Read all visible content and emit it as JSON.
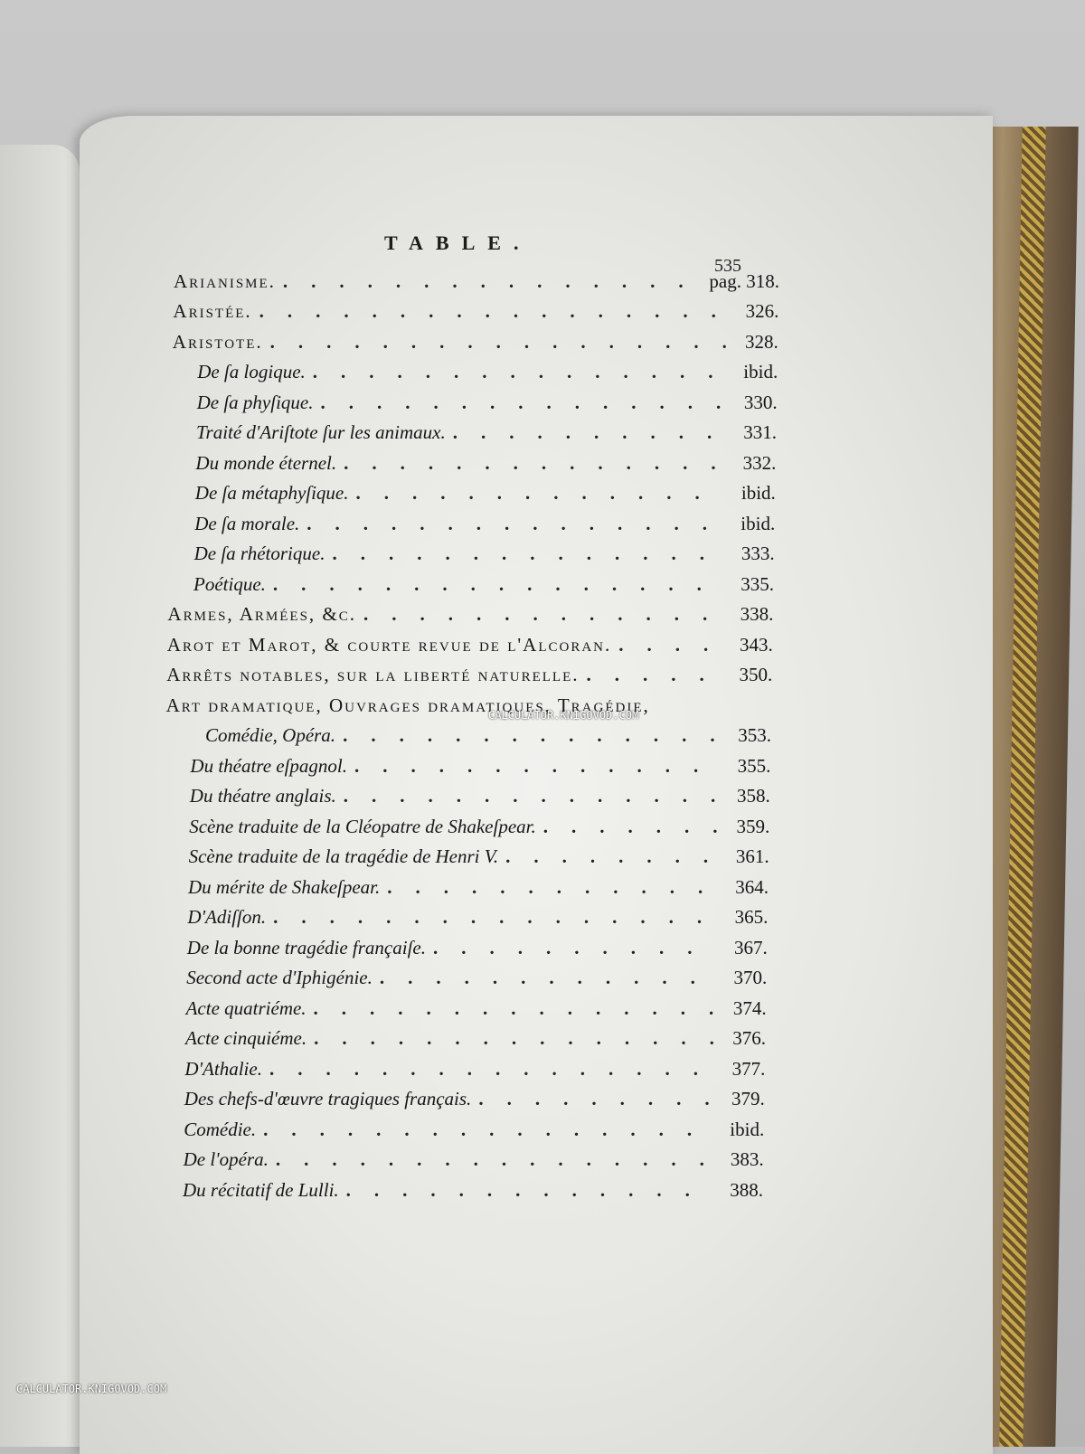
{
  "header": {
    "title": "TABLE.",
    "folio": "535"
  },
  "entries": [
    {
      "text": "Arianisme.",
      "style": "sc",
      "level": 0,
      "prefix": "pag.",
      "page": "318."
    },
    {
      "text": "Aristée.",
      "style": "sc",
      "level": 0,
      "page": "326."
    },
    {
      "text": "Aristote.",
      "style": "sc",
      "level": 0,
      "page": "328."
    },
    {
      "text": "De ſa logique.",
      "style": "it",
      "level": 1,
      "page": "ibid."
    },
    {
      "text": "De ſa phyſique.",
      "style": "it",
      "level": 1,
      "page": "330."
    },
    {
      "text": "Traité d'Ariſtote ſur les animaux.",
      "style": "it",
      "level": 1,
      "page": "331."
    },
    {
      "text": "Du monde éternel.",
      "style": "it",
      "level": 1,
      "page": "332."
    },
    {
      "text": "De ſa métaphyſique.",
      "style": "it",
      "level": 1,
      "page": "ibid."
    },
    {
      "text": "De ſa morale.",
      "style": "it",
      "level": 1,
      "page": "ibid."
    },
    {
      "text": "De ſa rhétorique.",
      "style": "it",
      "level": 1,
      "page": "333."
    },
    {
      "text": "Poétique.",
      "style": "it",
      "level": 1,
      "page": "335."
    },
    {
      "text": "Armes, Armées, &c.",
      "style": "sc",
      "level": 0,
      "page": "338."
    },
    {
      "text": "Arot et Marot, & courte revue de l'Alcoran.",
      "style": "sc",
      "level": 0,
      "page": "343."
    },
    {
      "text": "Arrêts notables, ſur la liberté naturelle.",
      "style": "sc",
      "level": 0,
      "page": "350."
    },
    {
      "text": "Art dramatique, Ouvrages dramatiques, Tragédie,",
      "style": "sc",
      "level": 0,
      "page": ""
    },
    {
      "text": "Comédie, Opéra.",
      "style": "it",
      "level": 2,
      "page": "353."
    },
    {
      "text": "Du théatre eſpagnol.",
      "style": "it",
      "level": 1,
      "page": "355."
    },
    {
      "text": "Du théatre anglais.",
      "style": "it",
      "level": 1,
      "page": "358."
    },
    {
      "text": "Scène traduite de la Cléopatre de Shakeſpear.",
      "style": "it",
      "level": 1,
      "page": "359."
    },
    {
      "text": "Scène traduite de la tragédie de Henri V.",
      "style": "it",
      "level": 1,
      "page": "361."
    },
    {
      "text": "Du mérite de Shakeſpear.",
      "style": "it",
      "level": 1,
      "page": "364."
    },
    {
      "text": "D'Adiſſon.",
      "style": "it",
      "level": 1,
      "page": "365."
    },
    {
      "text": "De la bonne tragédie françaiſe.",
      "style": "it",
      "level": 1,
      "page": "367."
    },
    {
      "text": "Second acte d'Iphigénie.",
      "style": "it",
      "level": 1,
      "page": "370."
    },
    {
      "text": "Acte quatriéme.",
      "style": "it",
      "level": 1,
      "page": "374."
    },
    {
      "text": "Acte cinquiéme.",
      "style": "it",
      "level": 1,
      "page": "376."
    },
    {
      "text": "D'Athalie.",
      "style": "it",
      "level": 1,
      "page": "377."
    },
    {
      "text": "Des chefs-d'œuvre tragiques français.",
      "style": "it",
      "level": 1,
      "page": "379."
    },
    {
      "text": "Comédie.",
      "style": "it",
      "level": 1,
      "page": "ibid."
    },
    {
      "text": "De l'opéra.",
      "style": "it",
      "level": 1,
      "page": "383."
    },
    {
      "text": "Du récitatif de Lulli.",
      "style": "it",
      "level": 1,
      "page": "388."
    }
  ],
  "watermark": {
    "center": "CALCULATOR.KNIGOVOD.COM",
    "corner": "CALCULATOR.KNIGOVOD.COM"
  }
}
